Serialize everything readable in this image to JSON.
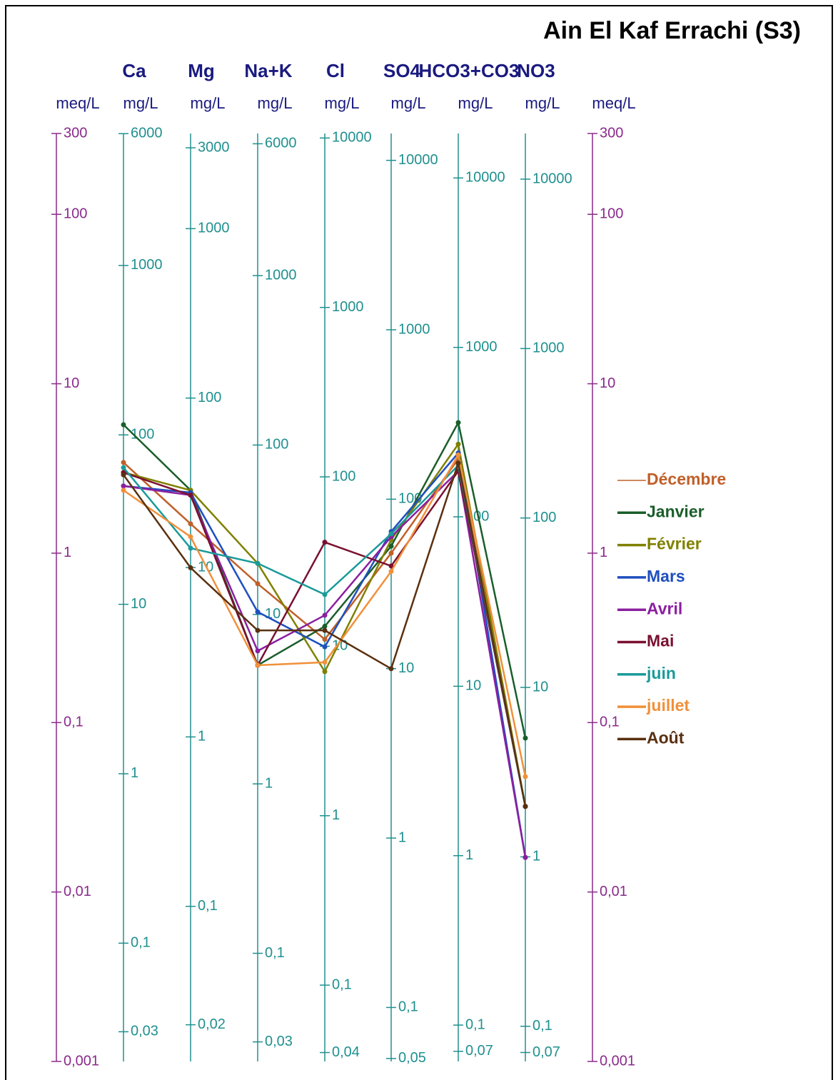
{
  "chart_data": {
    "type": "line",
    "title": "Ain El Kaf Errachi (S3)",
    "categories": [
      "Ca",
      "Mg",
      "Na+K",
      "Cl",
      "SO4",
      "HCO3+CO3",
      "NO3"
    ],
    "y_label": "meq/L",
    "y2_label": "meq/L",
    "mg_label": "mg/L",
    "log_scale": true,
    "legend": "right",
    "ylim": [
      0.001,
      300
    ],
    "yticks": [
      300,
      100,
      10,
      1,
      {
        "value": 0.1,
        "label": "0,1"
      },
      {
        "value": 0.01,
        "label": "0,01"
      },
      {
        "value": 0.001,
        "label": "0,001"
      }
    ],
    "y2lim": [
      0.001,
      300
    ],
    "y2ticks": [
      300,
      100,
      10,
      1,
      {
        "value": 0.1,
        "label": "0,1"
      },
      {
        "value": 0.01,
        "label": "0,01"
      },
      {
        "value": 0.001,
        "label": "0,001"
      }
    ],
    "mg_axes": [
      {
        "ylim": [
          0.02004,
          6012
        ],
        "ticks": [
          6000,
          1000,
          100,
          10,
          1,
          {
            "value": 0.1,
            "label": "0,1"
          },
          {
            "value": 0.03,
            "label": "0,03"
          }
        ]
      },
      {
        "ylim": [
          0.01215,
          3645
        ],
        "ticks": [
          3000,
          1000,
          100,
          10,
          1,
          {
            "value": 0.1,
            "label": "0,1"
          },
          {
            "value": 0.02,
            "label": "0,02"
          }
        ]
      },
      {
        "ylim": [
          0.023,
          6900
        ],
        "ticks": [
          6000,
          1000,
          100,
          10,
          1,
          {
            "value": 0.1,
            "label": "0,1"
          },
          {
            "value": 0.03,
            "label": "0,03"
          }
        ]
      },
      {
        "ylim": [
          0.03545,
          10635
        ],
        "ticks": [
          10000,
          1000,
          100,
          10,
          1,
          {
            "value": 0.1,
            "label": "0,1"
          },
          {
            "value": 0.04,
            "label": "0,04"
          }
        ]
      },
      {
        "ylim": [
          0.04803,
          14409
        ],
        "ticks": [
          10000,
          1000,
          100,
          10,
          1,
          {
            "value": 0.1,
            "label": "0,1"
          },
          {
            "value": 0.05,
            "label": "0,05"
          }
        ]
      },
      {
        "ylim": [
          0.06102,
          18306
        ],
        "ticks": [
          10000,
          1000,
          100,
          10,
          1,
          {
            "value": 0.1,
            "label": "0,1"
          },
          {
            "value": 0.07,
            "label": "0,07"
          }
        ]
      },
      {
        "ylim": [
          0.062,
          18600
        ],
        "ticks": [
          10000,
          1000,
          100,
          10,
          1,
          {
            "value": 0.1,
            "label": "0,1"
          },
          {
            "value": 0.07,
            "label": "0,07"
          }
        ]
      }
    ],
    "series": [
      {
        "name": "Décembre",
        "color": "#c0602a",
        "values": [
          3.43,
          1.49,
          0.66,
          0.31,
          1.0,
          3.6,
          0.032
        ]
      },
      {
        "name": "Janvier",
        "color": "#1a5e2a",
        "values": [
          5.73,
          2.35,
          0.218,
          0.37,
          1.1,
          5.9,
          0.081
        ]
      },
      {
        "name": "Février",
        "color": "#808000",
        "values": [
          3.0,
          2.35,
          0.87,
          0.2,
          1.2,
          4.4,
          0.032
        ]
      },
      {
        "name": "Mars",
        "color": "#1f4fbf",
        "values": [
          2.49,
          2.28,
          0.45,
          0.28,
          1.34,
          3.9,
          0.016
        ]
      },
      {
        "name": "Avril",
        "color": "#8b1fa0",
        "values": [
          2.49,
          2.2,
          0.265,
          0.43,
          1.25,
          3.05,
          0.016
        ]
      },
      {
        "name": "Mai",
        "color": "#7a1030",
        "values": [
          2.99,
          2.2,
          0.218,
          1.16,
          0.84,
          3.05,
          0.032
        ]
      },
      {
        "name": "juin",
        "color": "#1a9a9a",
        "values": [
          3.2,
          1.07,
          0.87,
          0.57,
          1.3,
          3.3,
          0.032
        ]
      },
      {
        "name": "juillet",
        "color": "#f0903a",
        "values": [
          2.35,
          1.25,
          0.218,
          0.227,
          0.78,
          3.8,
          0.048
        ]
      },
      {
        "name": "Août",
        "color": "#5a3010",
        "values": [
          2.9,
          0.82,
          0.35,
          0.35,
          0.208,
          3.4,
          0.032
        ]
      }
    ]
  }
}
